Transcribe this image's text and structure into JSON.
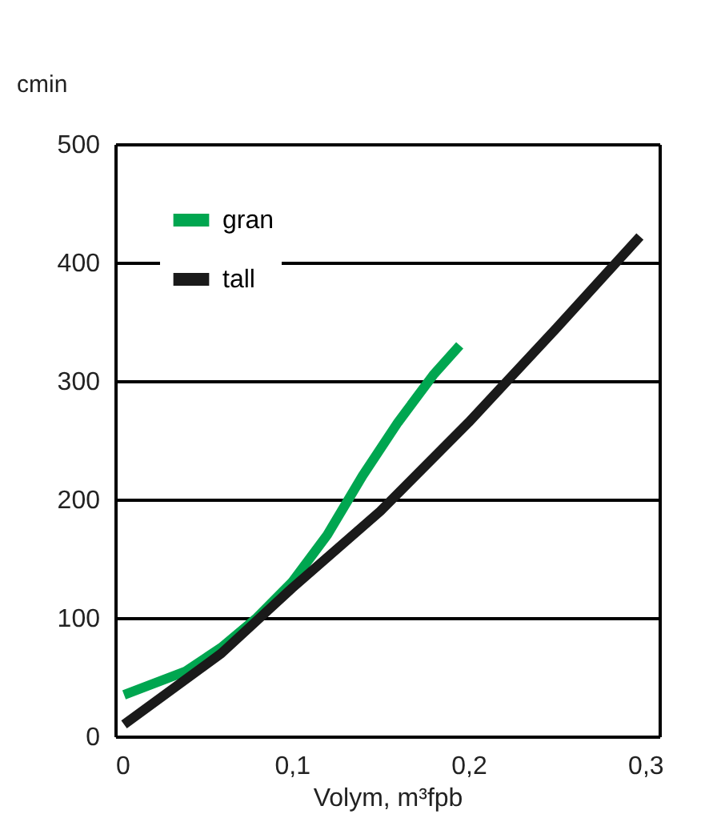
{
  "chart_data": {
    "type": "line",
    "xlabel": "Volym, m³fpb",
    "ylabel": "cmin",
    "xlim": [
      0,
      0.308
    ],
    "ylim": [
      0,
      500
    ],
    "xticks": [
      0,
      {
        "value": 0.1,
        "label": "0,1"
      },
      {
        "value": 0.2,
        "label": "0,2"
      },
      {
        "value": 0.3,
        "label": "0,3"
      }
    ],
    "yticks": [
      0,
      100,
      200,
      300,
      400,
      500
    ],
    "grid": "y",
    "legend": "top left",
    "marker": "none",
    "line_style": "solid",
    "series": [
      {
        "name": "gran",
        "color": "#00a650",
        "x": [
          0.005,
          0.04,
          0.06,
          0.08,
          0.1,
          0.12,
          0.14,
          0.16,
          0.18,
          0.195
        ],
        "values": [
          35,
          55,
          75,
          100,
          130,
          170,
          220,
          265,
          305,
          330
        ]
      },
      {
        "name": "tall",
        "color": "#1a1a1a",
        "x": [
          0.005,
          0.06,
          0.1,
          0.15,
          0.2,
          0.25,
          0.297
        ],
        "values": [
          10,
          70,
          125,
          190,
          265,
          345,
          422
        ]
      }
    ]
  }
}
